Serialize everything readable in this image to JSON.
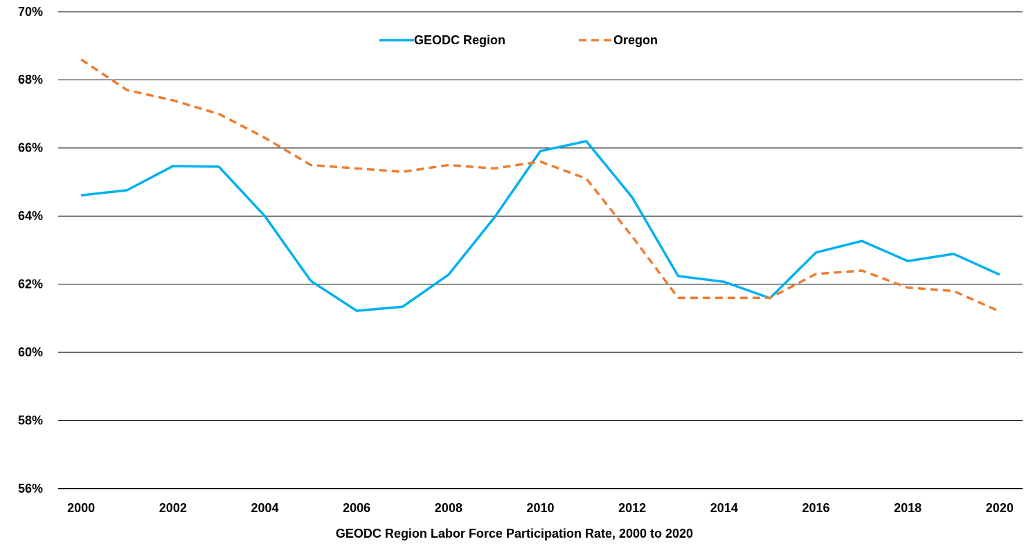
{
  "chart_data": {
    "type": "line",
    "title": "GEODC Region Labor Force Participation Rate, 2000 to 2020",
    "x": [
      2000,
      2001,
      2002,
      2003,
      2004,
      2005,
      2006,
      2007,
      2008,
      2009,
      2010,
      2011,
      2012,
      2013,
      2014,
      2015,
      2016,
      2017,
      2018,
      2019,
      2020
    ],
    "series": [
      {
        "name": "GEODC Region",
        "color": "#00b0f0",
        "style": "solid",
        "values": [
          64.61,
          64.76,
          65.47,
          65.45,
          64.0,
          62.1,
          61.22,
          61.34,
          62.28,
          63.96,
          65.91,
          66.2,
          64.55,
          62.24,
          62.07,
          61.59,
          62.93,
          63.27,
          62.68,
          62.89,
          62.28
        ]
      },
      {
        "name": "Oregon",
        "color": "#ed7d31",
        "style": "dashed",
        "values": [
          68.6,
          67.7,
          67.4,
          67.0,
          66.3,
          65.5,
          65.4,
          65.3,
          65.5,
          65.4,
          65.6,
          65.1,
          63.4,
          61.6,
          61.6,
          61.6,
          62.3,
          62.4,
          61.9,
          61.8,
          61.2
        ]
      }
    ],
    "xlim": [
      1999.5,
      2020.5
    ],
    "xticks": [
      2000,
      2002,
      2004,
      2006,
      2008,
      2010,
      2012,
      2014,
      2016,
      2018,
      2020
    ],
    "ylim": [
      56,
      70
    ],
    "yticks": [
      {
        "value": 56,
        "label": "56%"
      },
      {
        "value": 58,
        "label": "58%"
      },
      {
        "value": 60,
        "label": "60%"
      },
      {
        "value": 62,
        "label": "62%"
      },
      {
        "value": 64,
        "label": "64%"
      },
      {
        "value": 66,
        "label": "66%"
      },
      {
        "value": 68,
        "label": "68%"
      },
      {
        "value": 70,
        "label": "70%"
      }
    ],
    "grid": true,
    "legend": "top"
  }
}
